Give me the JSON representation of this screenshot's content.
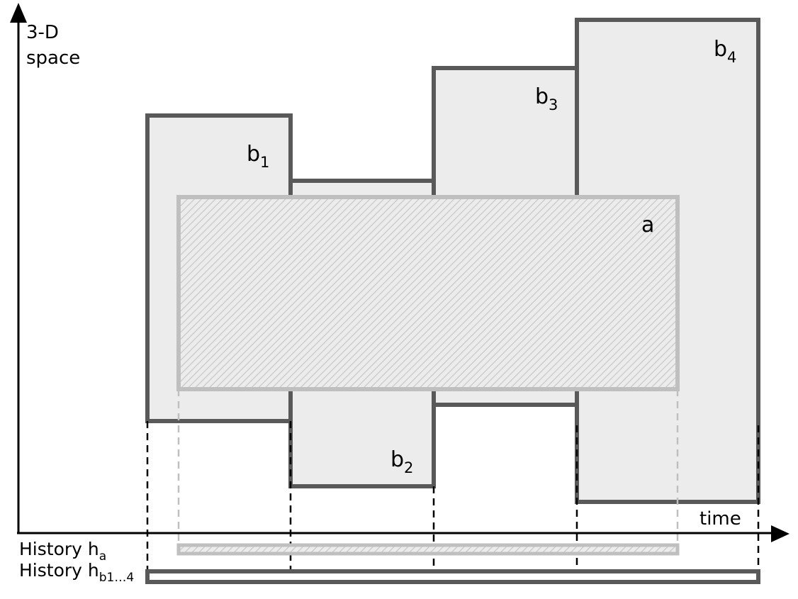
{
  "axes": {
    "y_label_line1": "3-D",
    "y_label_line2": "space",
    "x_label": "time"
  },
  "boxes": {
    "b1": {
      "label": "b",
      "sub": "1"
    },
    "b2": {
      "label": "b",
      "sub": "2"
    },
    "b3": {
      "label": "b",
      "sub": "3"
    },
    "b4": {
      "label": "b",
      "sub": "4"
    },
    "a": {
      "label": "a"
    }
  },
  "histories": {
    "ha": {
      "label": "History h",
      "sub": "a"
    },
    "hb": {
      "label": "History h",
      "sub": "b1…4"
    }
  },
  "colors": {
    "dark_box": "#595959",
    "box_fill": "#ececec",
    "light_box": "#bfbfbf",
    "hatch": "#c8c8c8",
    "axis": "#000000"
  }
}
